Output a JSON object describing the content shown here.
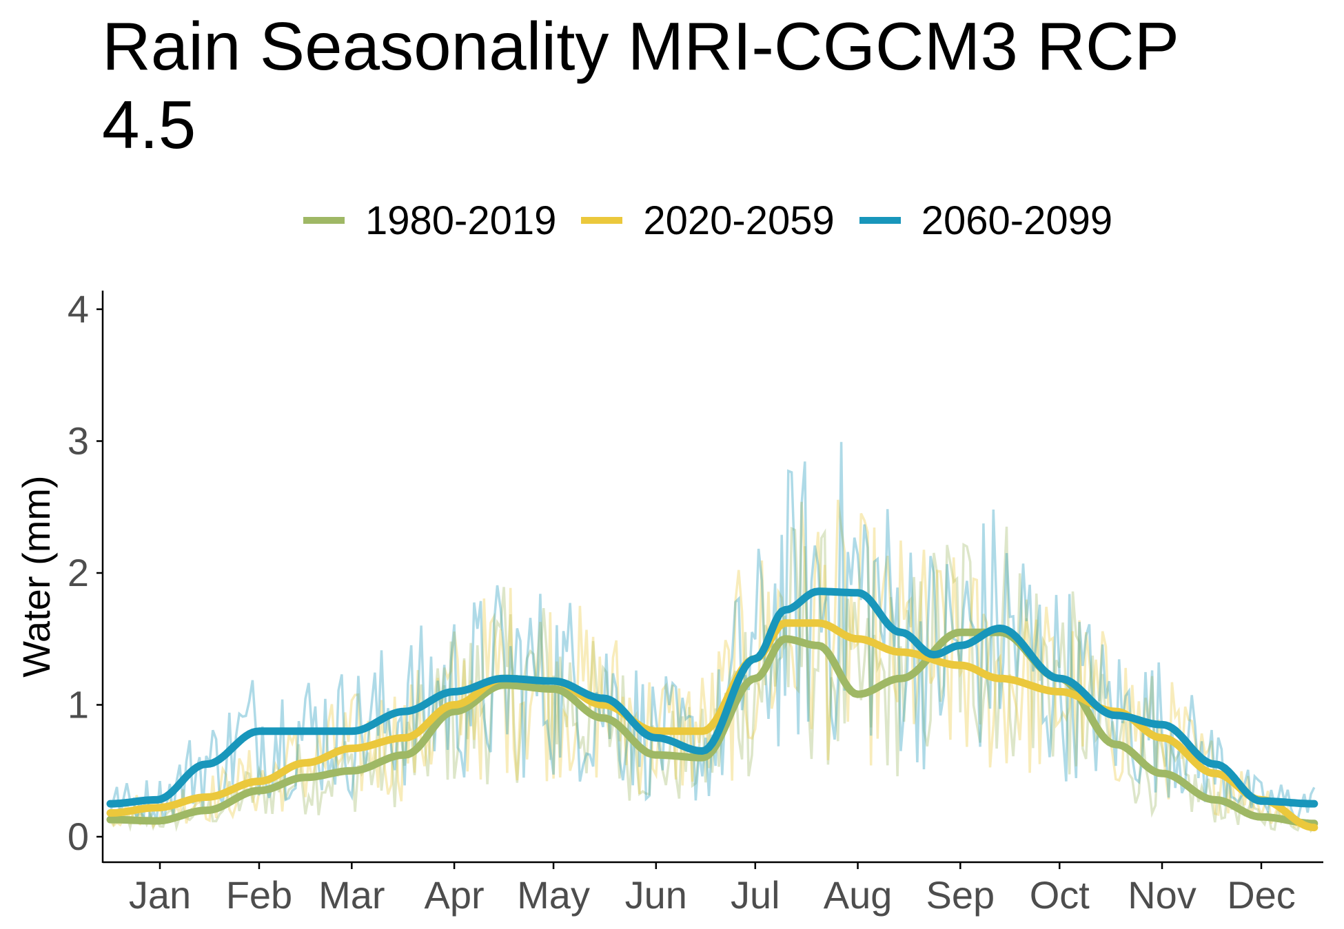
{
  "chart_data": {
    "type": "line",
    "title": "Rain Seasonality MRI-CGCM3 RCP 4.5",
    "xlabel": "",
    "ylabel": "Water (mm)",
    "ylim": [
      0,
      4
    ],
    "xlim": [
      1,
      365
    ],
    "yticks": [
      0,
      1,
      2,
      3,
      4
    ],
    "months": [
      "Jan",
      "Feb",
      "Mar",
      "Apr",
      "May",
      "Jun",
      "Jul",
      "Aug",
      "Sep",
      "Oct",
      "Nov",
      "Dec"
    ],
    "month_ticks_doy": [
      16,
      46,
      74,
      105,
      135,
      166,
      196,
      227,
      258,
      288,
      319,
      349
    ],
    "legend_position": "top",
    "grid": false,
    "series": [
      {
        "name": "1980-2019",
        "color": "#9FB865",
        "smooth": {
          "x": [
            1,
            15,
            30,
            46,
            60,
            74,
            90,
            105,
            120,
            135,
            150,
            166,
            180,
            196,
            205,
            215,
            227,
            240,
            258,
            270,
            288,
            305,
            319,
            335,
            349,
            365
          ],
          "y": [
            0.13,
            0.12,
            0.2,
            0.35,
            0.45,
            0.5,
            0.62,
            0.95,
            1.15,
            1.12,
            0.9,
            0.62,
            0.6,
            1.2,
            1.5,
            1.45,
            1.08,
            1.2,
            1.55,
            1.55,
            1.2,
            0.7,
            0.48,
            0.28,
            0.15,
            0.1
          ]
        }
      },
      {
        "name": "2020-2059",
        "color": "#EBC83C",
        "smooth": {
          "x": [
            1,
            15,
            30,
            46,
            60,
            74,
            90,
            105,
            120,
            135,
            150,
            166,
            180,
            196,
            205,
            215,
            227,
            240,
            258,
            270,
            288,
            305,
            319,
            335,
            349,
            365
          ],
          "y": [
            0.18,
            0.22,
            0.3,
            0.42,
            0.56,
            0.67,
            0.75,
            1.0,
            1.2,
            1.18,
            1.0,
            0.8,
            0.8,
            1.35,
            1.62,
            1.62,
            1.5,
            1.4,
            1.3,
            1.2,
            1.1,
            0.95,
            0.75,
            0.48,
            0.28,
            0.07
          ]
        }
      },
      {
        "name": "2060-2099",
        "color": "#1896BB",
        "smooth": {
          "x": [
            1,
            15,
            30,
            46,
            60,
            74,
            90,
            105,
            120,
            135,
            150,
            166,
            180,
            196,
            205,
            215,
            227,
            240,
            250,
            258,
            270,
            288,
            305,
            319,
            335,
            349,
            365
          ],
          "y": [
            0.25,
            0.28,
            0.55,
            0.8,
            0.8,
            0.8,
            0.95,
            1.1,
            1.2,
            1.18,
            1.05,
            0.75,
            0.65,
            1.35,
            1.72,
            1.86,
            1.85,
            1.55,
            1.38,
            1.45,
            1.58,
            1.2,
            0.92,
            0.85,
            0.55,
            0.27,
            0.25
          ]
        }
      }
    ]
  }
}
